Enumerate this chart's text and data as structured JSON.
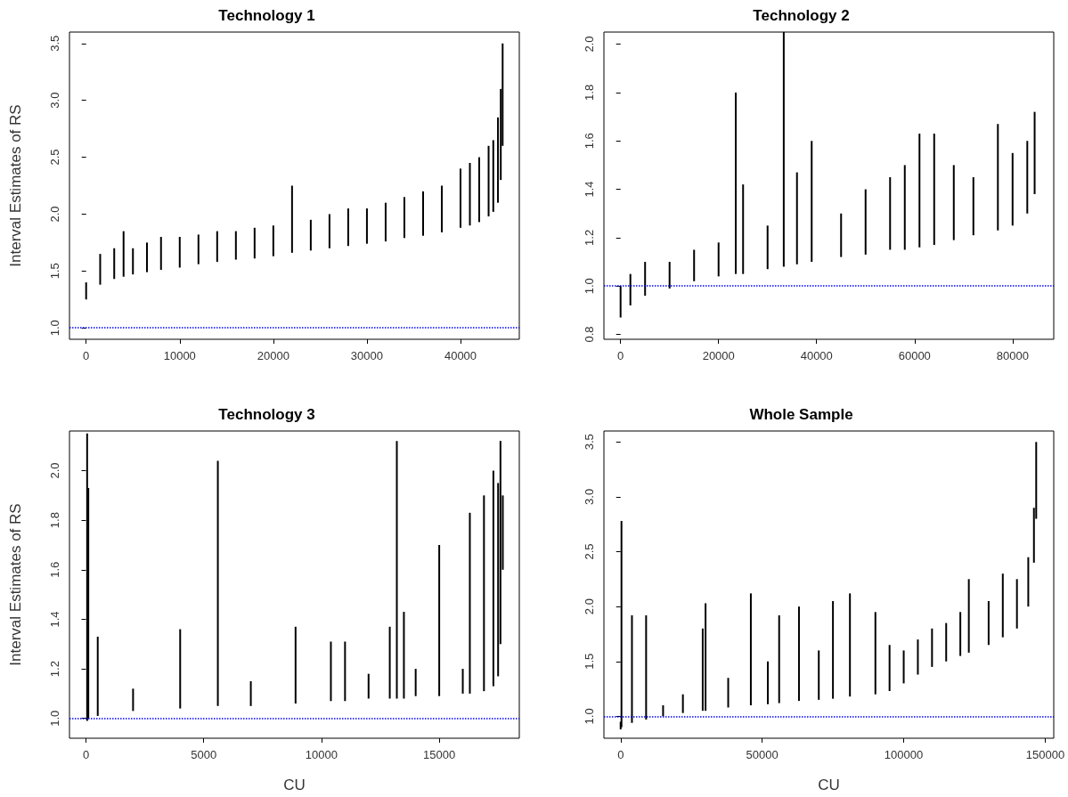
{
  "chart_data": [
    {
      "type": "bar",
      "title": "Technology 1",
      "ylabel": "Interval Estimates of RS",
      "color": "#000000",
      "x": [
        0,
        1500,
        3000,
        4000,
        5000,
        6500,
        8000,
        10000,
        12000,
        14000,
        16000,
        18000,
        20000,
        22000,
        24000,
        26000,
        28000,
        30000,
        32000,
        34000,
        36000,
        38000,
        40000,
        41000,
        42000,
        43000,
        43500,
        44000,
        44300,
        44500
      ],
      "base": [
        1.25,
        1.38,
        1.43,
        1.45,
        1.47,
        1.49,
        1.51,
        1.53,
        1.56,
        1.58,
        1.6,
        1.61,
        1.63,
        1.66,
        1.68,
        1.7,
        1.72,
        1.74,
        1.76,
        1.79,
        1.81,
        1.84,
        1.88,
        1.9,
        1.93,
        1.98,
        2.02,
        2.1,
        2.3,
        2.6
      ],
      "values": [
        0.15,
        0.27,
        0.27,
        0.4,
        0.23,
        0.26,
        0.29,
        0.27,
        0.26,
        0.27,
        0.25,
        0.27,
        0.27,
        0.59,
        0.27,
        0.3,
        0.33,
        0.31,
        0.34,
        0.36,
        0.39,
        0.41,
        0.52,
        0.55,
        0.57,
        0.62,
        0.63,
        0.75,
        0.8,
        0.9
      ],
      "xlim": [
        -1780,
        46280
      ],
      "xticks": [
        0,
        10000,
        20000,
        30000,
        40000
      ],
      "ylim": [
        0.9,
        3.6
      ],
      "yticks": [
        {
          "value": 1,
          "label": "1.0"
        },
        1.5,
        {
          "value": 2,
          "label": "2.0"
        },
        2.5,
        {
          "value": 3,
          "label": "3.0"
        },
        3.5
      ],
      "ref_lines": [
        {
          "axis": "y",
          "value": 1,
          "color": "#0000ff",
          "line_style": "dotted"
        }
      ]
    },
    {
      "type": "bar",
      "title": "Technology 2",
      "color": "#000000",
      "x": [
        0,
        2000,
        5000,
        10000,
        15000,
        20000,
        23500,
        25000,
        30000,
        33300,
        36000,
        39000,
        45000,
        50000,
        55000,
        58000,
        61000,
        64000,
        68000,
        72000,
        77000,
        80000,
        83000,
        84500
      ],
      "base": [
        0.87,
        0.92,
        0.96,
        0.99,
        1.02,
        1.04,
        1.05,
        1.05,
        1.07,
        1.08,
        1.09,
        1.1,
        1.12,
        1.13,
        1.15,
        1.15,
        1.16,
        1.17,
        1.19,
        1.21,
        1.23,
        1.25,
        1.3,
        1.38
      ],
      "values": [
        0.13,
        0.13,
        0.14,
        0.11,
        0.13,
        0.14,
        0.75,
        0.37,
        0.18,
        0.97,
        0.38,
        0.5,
        0.18,
        0.27,
        0.3,
        0.35,
        0.47,
        0.46,
        0.31,
        0.24,
        0.44,
        0.3,
        0.3,
        0.34
      ],
      "xlim": [
        -3400,
        88400
      ],
      "xticks": [
        0,
        20000,
        40000,
        60000,
        80000
      ],
      "ylim": [
        0.78,
        2.05
      ],
      "yticks": [
        0.8,
        {
          "value": 1,
          "label": "1.0"
        },
        1.2,
        1.4,
        1.6,
        1.8,
        {
          "value": 2,
          "label": "2.0"
        }
      ],
      "ref_lines": [
        {
          "axis": "y",
          "value": 1,
          "color": "#0000ff",
          "line_style": "dotted"
        }
      ]
    },
    {
      "type": "bar",
      "title": "Technology 3",
      "ylabel": "Interval Estimates of RS",
      "xlabel": "CU",
      "color": "#000000",
      "x": [
        50,
        100,
        500,
        2000,
        4000,
        5600,
        7000,
        8900,
        10400,
        11000,
        12000,
        12900,
        13200,
        13500,
        14000,
        15000,
        16000,
        16300,
        16900,
        17300,
        17500,
        17600,
        17700
      ],
      "base": [
        0.99,
        1.0,
        1.01,
        1.03,
        1.04,
        1.05,
        1.05,
        1.06,
        1.07,
        1.07,
        1.08,
        1.08,
        1.08,
        1.08,
        1.09,
        1.09,
        1.1,
        1.1,
        1.11,
        1.13,
        1.17,
        1.3,
        1.6
      ],
      "values": [
        1.16,
        0.93,
        0.32,
        0.09,
        0.32,
        0.99,
        0.1,
        0.31,
        0.24,
        0.24,
        0.1,
        0.29,
        1.04,
        0.35,
        0.11,
        0.61,
        0.1,
        0.73,
        0.79,
        0.87,
        0.78,
        0.82,
        0.3
      ],
      "xlim": [
        -700,
        18400
      ],
      "xticks": [
        0,
        5000,
        10000,
        15000
      ],
      "ylim": [
        0.92,
        2.16
      ],
      "yticks": [
        {
          "value": 1,
          "label": "1.0"
        },
        1.2,
        1.4,
        1.6,
        1.8,
        {
          "value": 2,
          "label": "2.0"
        }
      ],
      "ref_lines": [
        {
          "axis": "y",
          "value": 1,
          "color": "#0000ff",
          "line_style": "dotted"
        }
      ]
    },
    {
      "type": "bar",
      "title": "Whole Sample",
      "xlabel": "CU",
      "color": "#000000",
      "x": [
        0,
        300,
        4000,
        9000,
        15000,
        22000,
        29000,
        30000,
        38000,
        46000,
        52000,
        56000,
        63000,
        70000,
        75000,
        81000,
        90000,
        95000,
        100000,
        105000,
        110000,
        115000,
        120000,
        123000,
        130000,
        135000,
        140000,
        144000,
        146000,
        146800
      ],
      "base": [
        0.88,
        0.9,
        0.94,
        0.97,
        1.0,
        1.03,
        1.05,
        1.05,
        1.08,
        1.1,
        1.11,
        1.12,
        1.14,
        1.15,
        1.16,
        1.18,
        1.2,
        1.23,
        1.3,
        1.38,
        1.45,
        1.5,
        1.55,
        1.58,
        1.65,
        1.72,
        1.8,
        2.0,
        2.4,
        2.8
      ],
      "values": [
        0.07,
        1.88,
        0.98,
        0.95,
        0.1,
        0.17,
        0.75,
        0.98,
        0.27,
        1.02,
        0.39,
        0.8,
        0.86,
        0.45,
        0.89,
        0.94,
        0.75,
        0.42,
        0.3,
        0.32,
        0.35,
        0.35,
        0.4,
        0.67,
        0.4,
        0.58,
        0.45,
        0.45,
        0.5,
        0.7
      ],
      "xlim": [
        -5900,
        153000
      ],
      "xticks": [
        0,
        50000,
        100000,
        150000
      ],
      "ylim": [
        0.8,
        3.6
      ],
      "yticks": [
        {
          "value": 1,
          "label": "1.0"
        },
        1.5,
        {
          "value": 2,
          "label": "2.0"
        },
        2.5,
        {
          "value": 3,
          "label": "3.0"
        },
        3.5
      ],
      "ref_lines": [
        {
          "axis": "y",
          "value": 1,
          "color": "#0000ff",
          "line_style": "dotted"
        }
      ]
    }
  ]
}
